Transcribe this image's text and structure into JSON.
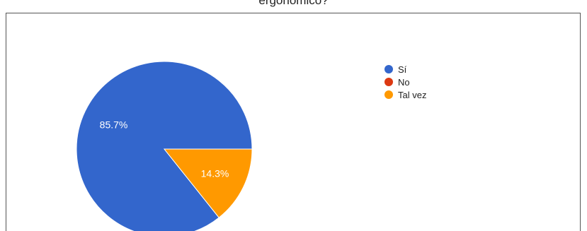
{
  "title": "ergonómico?",
  "chart_data": {
    "type": "pie",
    "title": "ergonómico?",
    "slices": [
      {
        "name": "Sí",
        "value": 85.7,
        "label": "85.7%",
        "color": "#3366cc"
      },
      {
        "name": "No",
        "value": 0,
        "label": "",
        "color": "#dc3912"
      },
      {
        "name": "Tal vez",
        "value": 14.3,
        "label": "14.3%",
        "color": "#ff9900"
      }
    ],
    "legend": "right",
    "start_angle_deg": 0,
    "direction": "counterclockwise"
  }
}
